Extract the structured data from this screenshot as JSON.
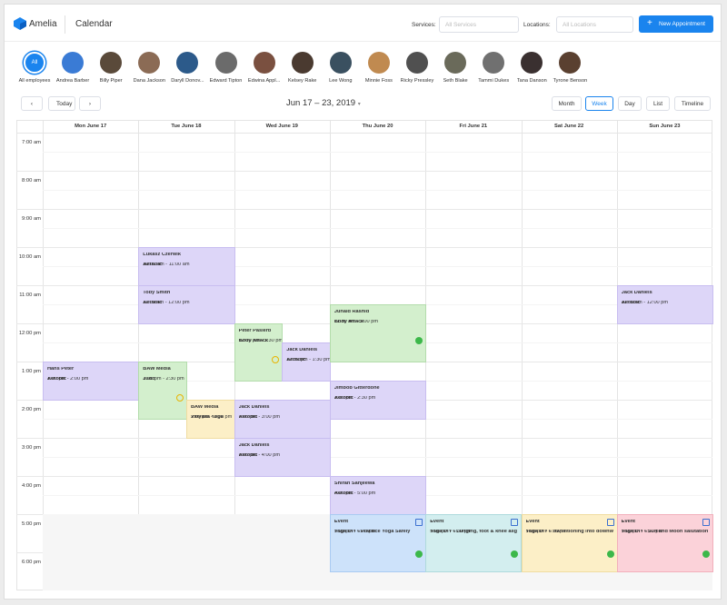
{
  "header": {
    "brand": "Amelia",
    "title": "Calendar",
    "services_label": "Services:",
    "services_placeholder": "All Services",
    "locations_label": "Locations:",
    "locations_placeholder": "All Locations",
    "new_button": "New Appointment"
  },
  "employees": {
    "all_badge": "All",
    "names": [
      "All employees",
      "Andrea Barber",
      "Billy Piper",
      "Dana Jackson",
      "Daryll Donov...",
      "Edward Tipton",
      "Edwina Appl...",
      "Kelsey Rake",
      "Lee Wong",
      "Minnie Foss",
      "Ricky Pressley",
      "Seth Blake",
      "Tammi Dukes",
      "Tana Danson",
      "Tyrone Benson"
    ]
  },
  "toolbar": {
    "today": "Today",
    "range": "Jun 17 – 23, 2019",
    "views": [
      "Month",
      "Week",
      "Day",
      "List",
      "Timeline"
    ]
  },
  "days": [
    "Mon June 17",
    "Tue June 18",
    "Wed June 19",
    "Thu June 20",
    "Fri June 21",
    "Sat June 22",
    "Sun June 23"
  ],
  "hours": [
    "7:00 am",
    "8:00 am",
    "9:00 am",
    "10:00 am",
    "11:00 am",
    "12:00 pm",
    "1:00 pm",
    "2:00 pm",
    "3:00 pm",
    "4:00 pm",
    "5:00 pm",
    "6:00 pm"
  ],
  "events": [
    {
      "name": "Lukasz Czerwik",
      "time": "10:00 am - 11:00 am",
      "service": "Aerobic"
    },
    {
      "name": "Toby Smith",
      "time": "11:00 am - 12:00 pm",
      "service": "Aerobic"
    },
    {
      "name": "Peter Pasierb",
      "time": "12:00 pm - 1:30 pm",
      "service": "Body Attack",
      "employee": "Tana Danson"
    },
    {
      "name": "Jack Daniels",
      "time": "12:30 pm - 1:30 pm",
      "service": "Aerobic"
    },
    {
      "name": "Junaid Rashid",
      "time": "11:30 am - 1:00 pm",
      "service": "Body Attack",
      "employee": "Edward Tipton"
    },
    {
      "name": "Jack Daniels",
      "time": "11:00 am - 12:00 pm",
      "service": "Aerobic"
    },
    {
      "name": "Hans Peter",
      "time": "1:00 pm - 2:00 pm",
      "service": "Aerobic"
    },
    {
      "name": "BAW Media",
      "time": "1:00 pm - 2:30 pm",
      "service": "Judo",
      "employee": "Lee Wong"
    },
    {
      "name": "BAW Media",
      "time": "2:00 pm - 3:00 pm",
      "service": "Vinyasa Yoga"
    },
    {
      "name": "Jack Daniels",
      "time": "2:00 pm - 3:00 pm",
      "service": "Aerobic"
    },
    {
      "name": "Jack Daniels",
      "time": "3:00 pm - 4:00 pm",
      "service": "Aerobic"
    },
    {
      "name": "Jimbob Gitterdone",
      "time": "1:30 pm - 2:30 pm",
      "service": "Aerobic"
    },
    {
      "name": "Shiran Sanjeewa",
      "time": "4:00 pm - 5:00 pm",
      "service": "Aerobic"
    },
    {
      "name": "Event",
      "time": "5:00 pm - 6:30 pm",
      "service": "Yoga DIY - Practice Yoga Safely",
      "employee": "Dana Jackson"
    },
    {
      "name": "Event",
      "time": "5:00 pm - 6:30 pm",
      "service": "Yoga DIY - Lunging, foot & knee align...",
      "employee": "Dana Jackson"
    },
    {
      "name": "Event",
      "time": "5:00 pm - 6:30 pm",
      "service": "Yoga DIY - Transitioning into downwa...",
      "employee": "Andrea Barber"
    },
    {
      "name": "Event",
      "time": "5:00 pm - 6:30 pm",
      "service": "Yoga DIY - Sun and Moon salutation fl...",
      "employee": "Kelsey Rake"
    }
  ]
}
